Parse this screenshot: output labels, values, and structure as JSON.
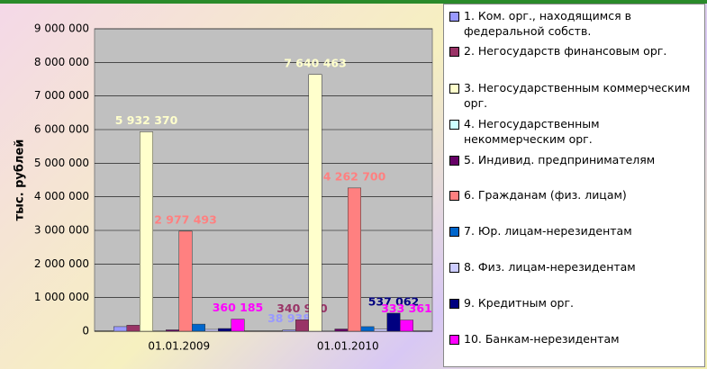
{
  "chart_data": {
    "type": "bar",
    "y_label": "тыс. рублей",
    "categories": [
      "01.01.2009",
      "01.01.2010"
    ],
    "ylim": [
      0,
      9000000
    ],
    "yticks": [
      0,
      {
        "value": 1000000,
        "label": "1 000 000"
      },
      {
        "value": 2000000,
        "label": "2 000 000"
      },
      {
        "value": 3000000,
        "label": "3 000 000"
      },
      {
        "value": 4000000,
        "label": "4 000 000"
      },
      {
        "value": 5000000,
        "label": "5 000 000"
      },
      {
        "value": 6000000,
        "label": "6 000 000"
      },
      {
        "value": 7000000,
        "label": "7 000 000"
      },
      {
        "value": 8000000,
        "label": "8 000 000"
      },
      {
        "value": 9000000,
        "label": "9 000 000"
      }
    ],
    "grid": true,
    "legend": "right",
    "series": [
      {
        "name": "1. Ком. орг., находящимся в федеральной собств.",
        "color": "#9999ff",
        "values": [
          136000,
          38938
        ],
        "value_labels": [
          null,
          "38 938"
        ]
      },
      {
        "name": "2. Негосударств финансовым орг.",
        "color": "#993366",
        "values": [
          180000,
          340920
        ],
        "value_labels": [
          null,
          "340 920"
        ]
      },
      {
        "name": "3. Негосударственным коммерческим орг.",
        "color": "#ffffcc",
        "values": [
          5932370,
          7640463
        ],
        "value_labels": [
          "5 932 370",
          "7 640 463"
        ]
      },
      {
        "name": "4. Негосударственным некоммерческим орг.",
        "color": "#ccffff",
        "values": [
          2000,
          5000
        ],
        "value_labels": [
          null,
          null
        ]
      },
      {
        "name": "5. Индивид. предпринимателям",
        "color": "#660066",
        "values": [
          40000,
          66000
        ],
        "value_labels": [
          null,
          null
        ]
      },
      {
        "name": "6. Гражданам (физ. лицам)",
        "color": "#ff8080",
        "values": [
          2977493,
          4262700
        ],
        "value_labels": [
          "2 977 493",
          "4 262 700"
        ]
      },
      {
        "name": "7. Юр. лицам-нерезидентам",
        "color": "#0066cc",
        "values": [
          211000,
          136000
        ],
        "value_labels": [
          null,
          null
        ]
      },
      {
        "name": "8. Физ. лицам-нерезидентам",
        "color": "#ccccff",
        "values": [
          54000,
          67000
        ],
        "value_labels": [
          null,
          null
        ]
      },
      {
        "name": "9. Кредитным орг.",
        "color": "#000080",
        "values": [
          80000,
          537062
        ],
        "value_labels": [
          null,
          "537 062"
        ]
      },
      {
        "name": "10. Банкам-нерезидентам",
        "color": "#ff00ff",
        "values": [
          360185,
          333361
        ],
        "value_labels": [
          "360 185",
          "333 361"
        ]
      }
    ]
  }
}
